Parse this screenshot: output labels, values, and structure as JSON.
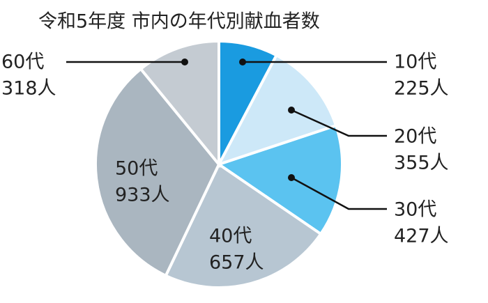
{
  "chart_data": {
    "type": "pie",
    "title": "令和5年度  市内の年代別献血者数",
    "categories": [
      "10代",
      "20代",
      "30代",
      "40代",
      "50代",
      "60代"
    ],
    "values": [
      225,
      355,
      427,
      657,
      933,
      318
    ],
    "value_labels": [
      "225人",
      "355人",
      "427人",
      "657人",
      "933人",
      "318人"
    ],
    "colors": [
      "#1a9be0",
      "#cde8f8",
      "#5bc3f0",
      "#b7c6d2",
      "#aab6c0",
      "#c4cbd2"
    ]
  }
}
